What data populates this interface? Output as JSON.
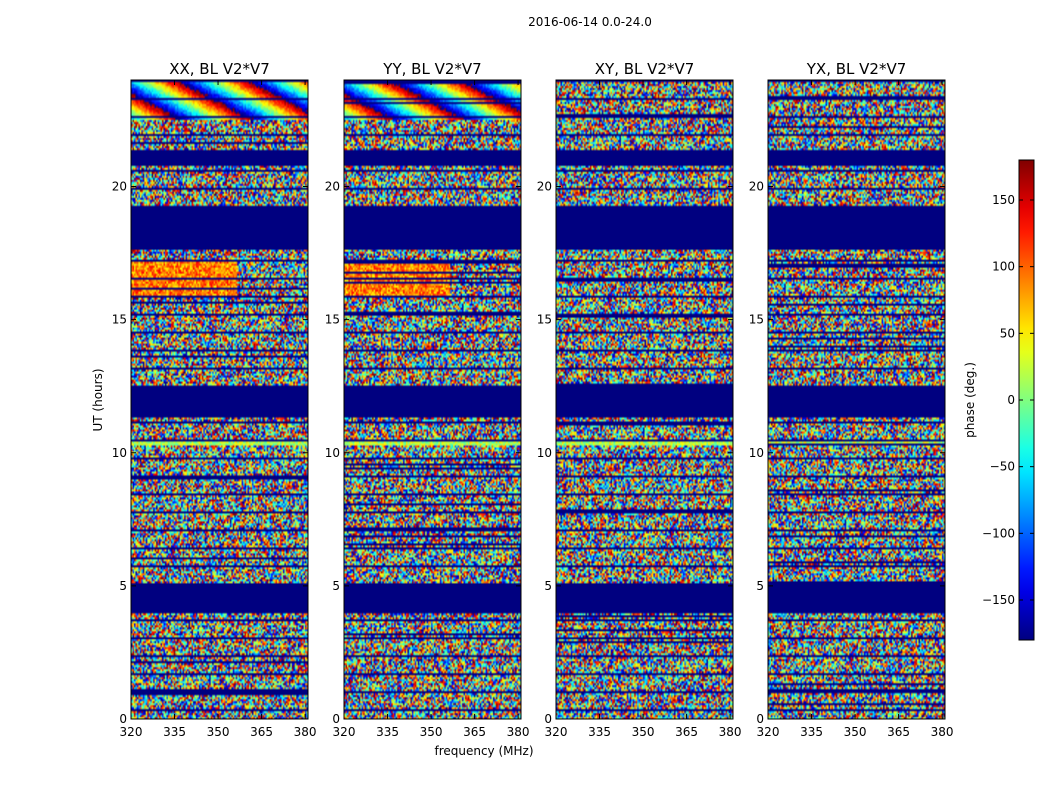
{
  "chart_data": {
    "type": "heatmap",
    "suptitle": "2016-06-14 0.0-24.0",
    "panels": [
      {
        "title": "XX, BL V2*V7",
        "strong_fringes": true
      },
      {
        "title": "YY, BL V2*V7",
        "strong_fringes": true
      },
      {
        "title": "XY, BL V2*V7",
        "strong_fringes": false
      },
      {
        "title": "YX, BL V2*V7",
        "strong_fringes": false
      }
    ],
    "xlabel": "frequency (MHz)",
    "ylabel": "UT (hours)",
    "xlim": [
      320,
      381
    ],
    "ylim": [
      0,
      24
    ],
    "x_ticks": [
      "320",
      "335",
      "350",
      "365",
      "380"
    ],
    "x_tick_values": [
      320,
      335,
      350,
      365,
      380
    ],
    "y_ticks": [
      "0",
      "5",
      "10",
      "15",
      "20"
    ],
    "y_tick_values": [
      0,
      5,
      10,
      15,
      20
    ],
    "flagged_hours": [
      [
        4.0,
        5.0
      ],
      [
        11.3,
        12.5
      ],
      [
        17.6,
        19.2
      ],
      [
        20.8,
        21.4
      ]
    ],
    "colorbar": {
      "label": "phase (deg.)",
      "range": [
        -180,
        180
      ],
      "ticks": [
        "−150",
        "−100",
        "−50",
        "0",
        "50",
        "100",
        "150"
      ],
      "tick_values": [
        -150,
        -100,
        -50,
        0,
        50,
        100,
        150
      ],
      "colormap": "jet"
    }
  }
}
